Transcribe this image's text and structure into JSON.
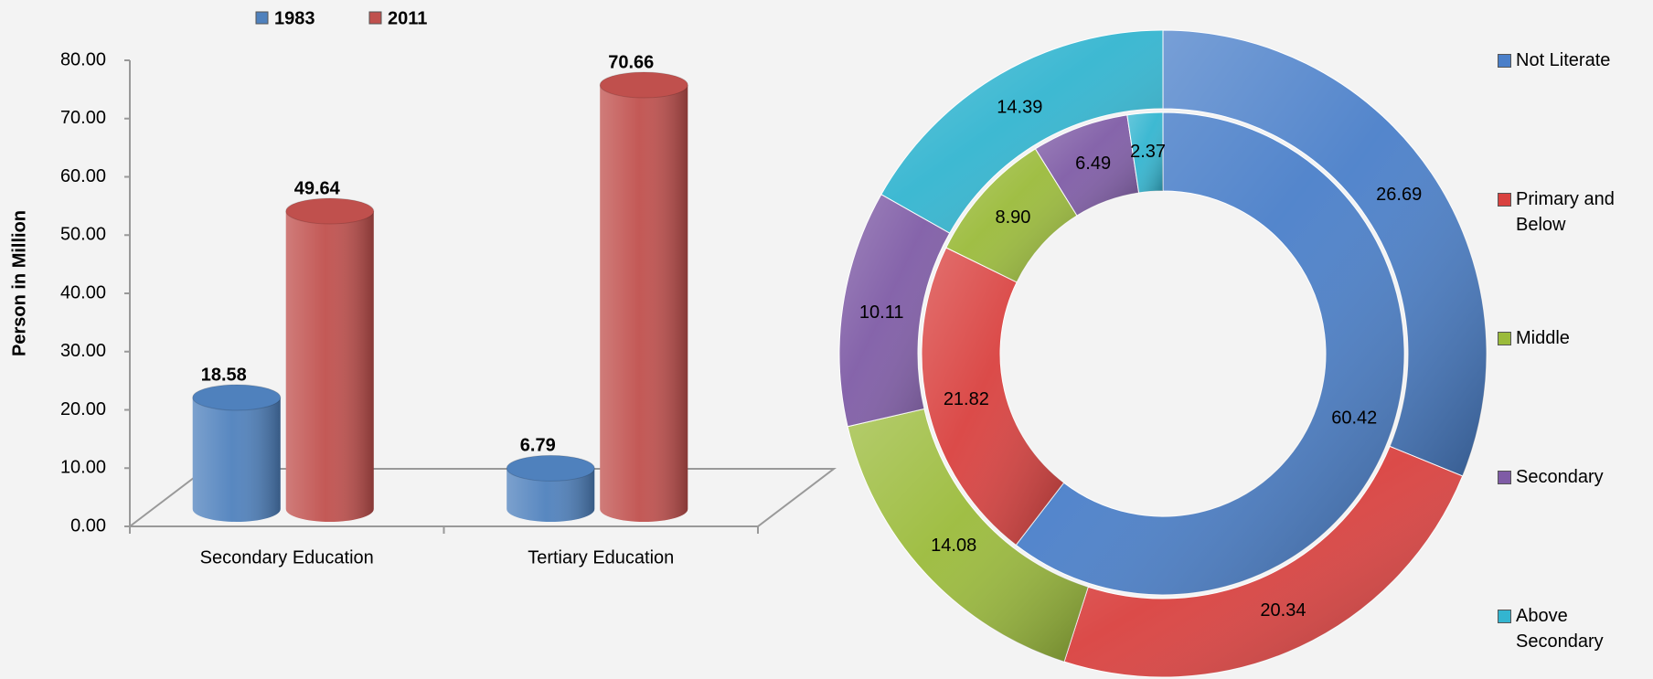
{
  "chart_data": [
    {
      "type": "bar3d",
      "ylabel": "Person in Million",
      "categories": [
        "Secondary Education",
        "Tertiary Education"
      ],
      "series": [
        {
          "name": "1983",
          "color": "#4f81bd",
          "values": [
            18.58,
            6.79
          ]
        },
        {
          "name": "2011",
          "color": "#c0504d",
          "values": [
            49.64,
            70.66
          ]
        }
      ],
      "ylim": [
        0,
        80
      ],
      "yticks": [
        {
          "value": 0,
          "label": "0.00"
        },
        {
          "value": 10,
          "label": "10.00"
        },
        {
          "value": 20,
          "label": "20.00"
        },
        {
          "value": 30,
          "label": "30.00"
        },
        {
          "value": 40,
          "label": "40.00"
        },
        {
          "value": 50,
          "label": "50.00"
        },
        {
          "value": 60,
          "label": "60.00"
        },
        {
          "value": 70,
          "label": "70.00"
        },
        {
          "value": 80,
          "label": "80.00"
        }
      ],
      "legend": "top"
    },
    {
      "type": "doughnut",
      "categories": [
        "Not Literate",
        "Primary and Below",
        "Middle",
        "Secondary",
        "Above Secondary"
      ],
      "colors": [
        "#4a7fc9",
        "#d9413f",
        "#9bbb3b",
        "#7f5ca6",
        "#33b5d0"
      ],
      "series": [
        {
          "values": [
            26.69,
            20.34,
            14.08,
            10.11,
            14.39
          ]
        },
        {
          "values": [
            60.42,
            21.82,
            8.9,
            6.49,
            2.37
          ],
          "value_labels": [
            "60.42",
            "21.82",
            "8.90",
            "6.49",
            "2.37"
          ]
        }
      ],
      "legend": "right"
    }
  ]
}
